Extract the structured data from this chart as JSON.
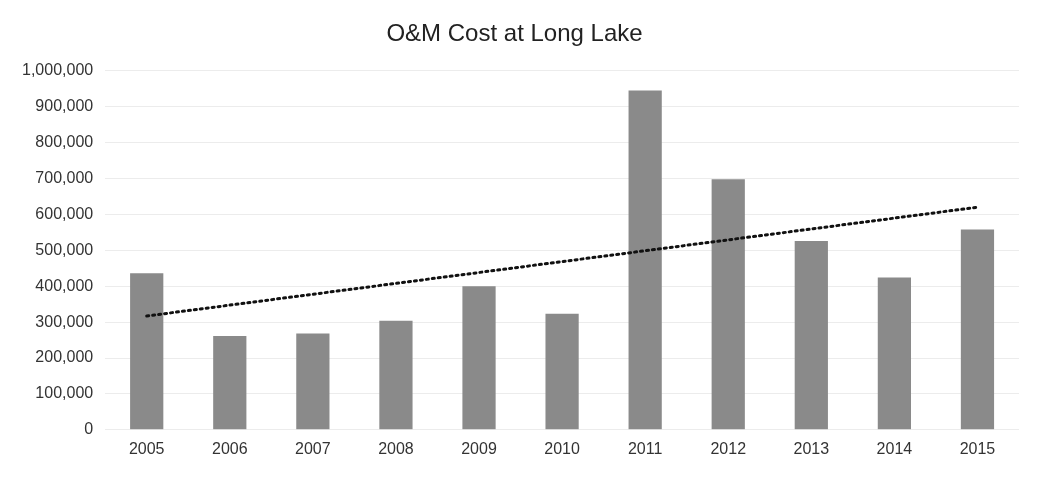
{
  "chart_data": {
    "type": "bar",
    "title": "O&M Cost at Long Lake",
    "categories": [
      "2005",
      "2006",
      "2007",
      "2008",
      "2009",
      "2010",
      "2011",
      "2012",
      "2013",
      "2014",
      "2015"
    ],
    "series": [
      {
        "color": "#8a8a8a",
        "values": [
          436000,
          261000,
          268000,
          304000,
          400000,
          323000,
          945000,
          698000,
          526000,
          424000,
          558000
        ]
      },
      {
        "type": "line",
        "color": "#111111",
        "values": [
          317000,
          null,
          null,
          null,
          null,
          null,
          null,
          null,
          null,
          null,
          620000
        ],
        "line_style": "dotted",
        "marker": "none"
      }
    ],
    "ylim": [
      0,
      1000000
    ],
    "yticks": [
      0,
      {
        "value": 100000,
        "label": "100,000"
      },
      {
        "value": 200000,
        "label": "200,000"
      },
      {
        "value": 300000,
        "label": "300,000"
      },
      {
        "value": 400000,
        "label": "400,000"
      },
      {
        "value": 500000,
        "label": "500,000"
      },
      {
        "value": 600000,
        "label": "600,000"
      },
      {
        "value": 700000,
        "label": "700,000"
      },
      {
        "value": 800000,
        "label": "800,000"
      },
      {
        "value": 900000,
        "label": "900,000"
      },
      {
        "value": 1000000,
        "label": "1,000,000"
      }
    ],
    "grid": "y",
    "legend": false
  }
}
